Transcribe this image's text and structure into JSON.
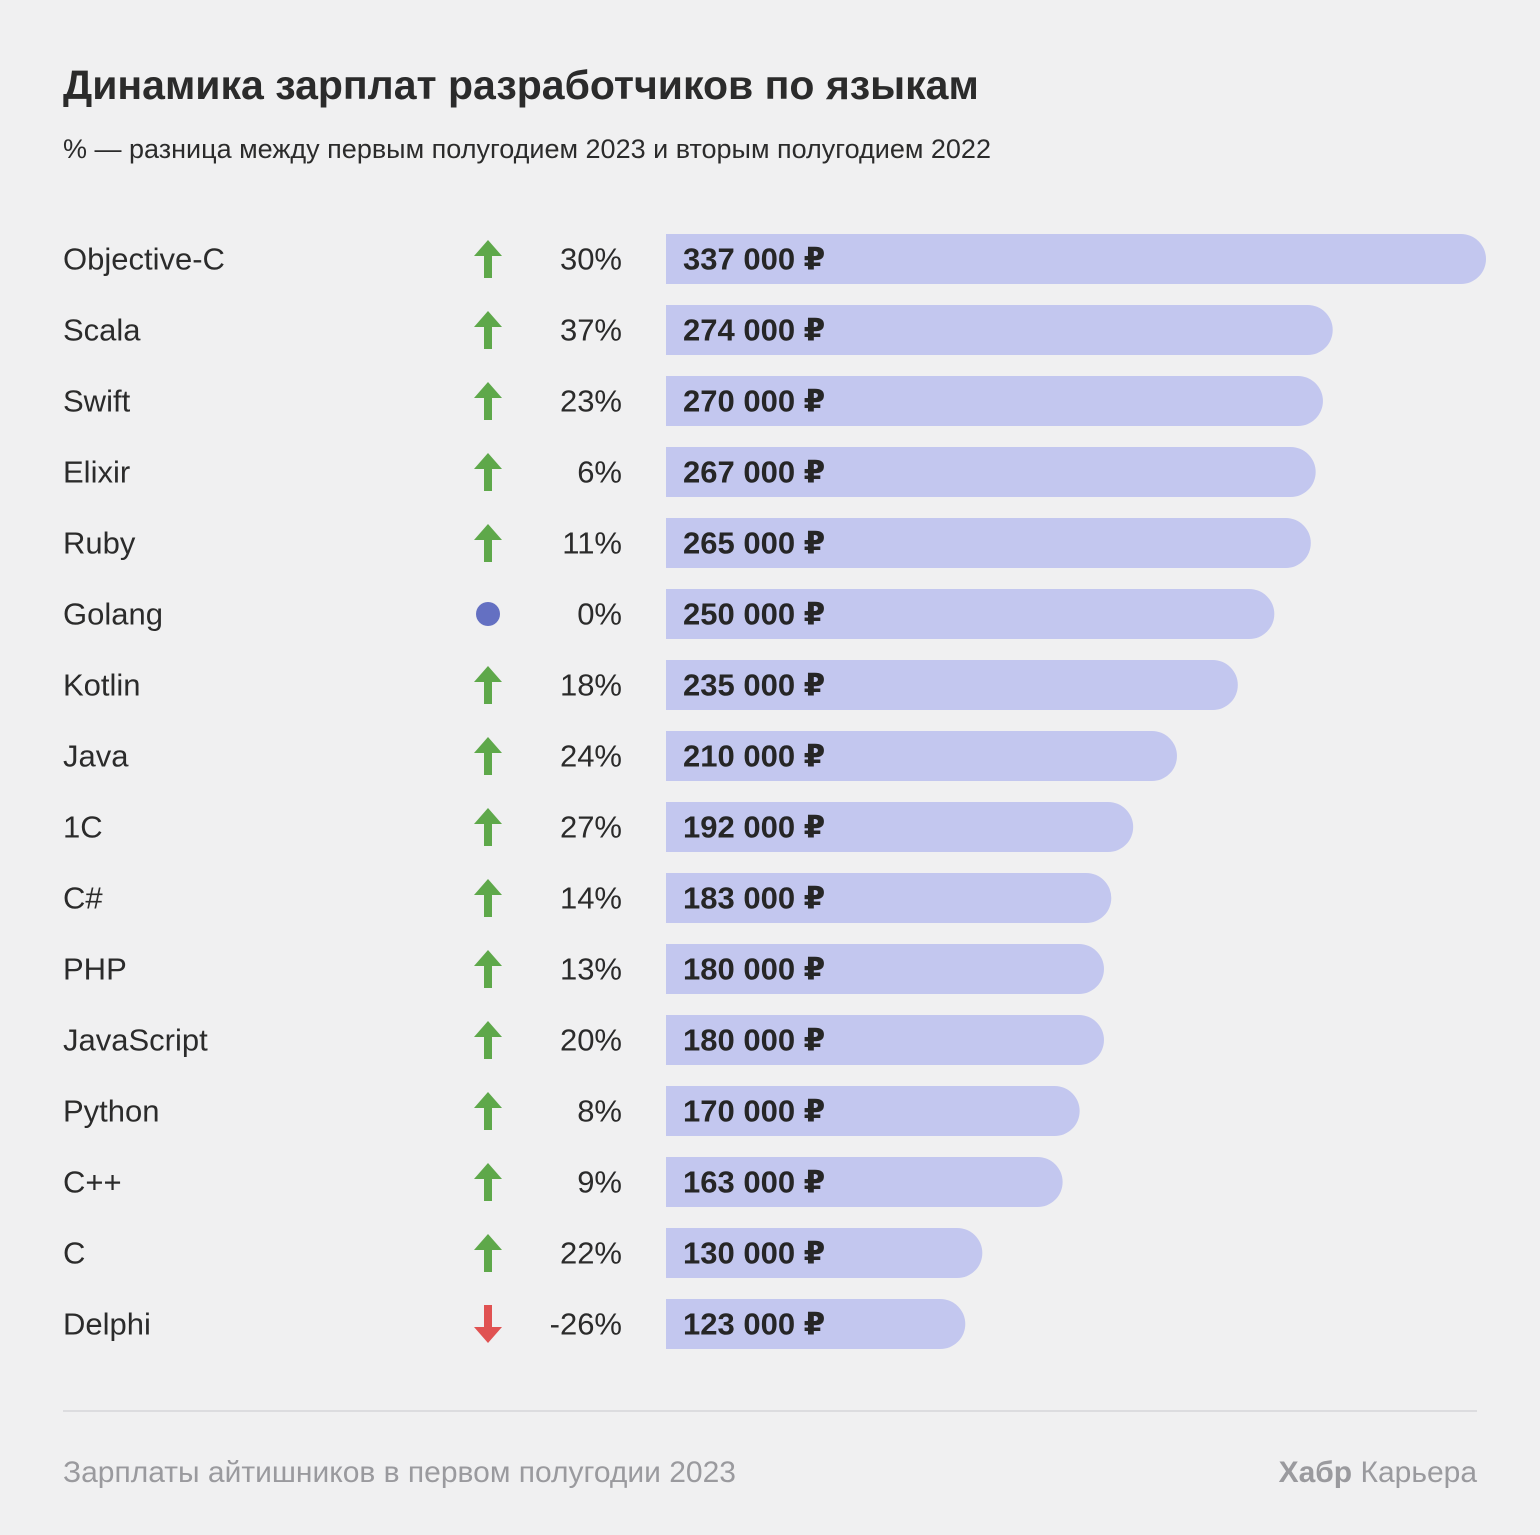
{
  "chart_data": {
    "type": "bar",
    "title": "Динамика зарплат разработчиков по языкам",
    "subtitle": "% — разница между первым полугодием 2023 и вторым полугодием 2022",
    "orientation": "horizontal",
    "value_unit": "₽",
    "categories": [
      "Objective-C",
      "Scala",
      "Swift",
      "Elixir",
      "Ruby",
      "Golang",
      "Kotlin",
      "Java",
      "1C",
      "C#",
      "PHP",
      "JavaScript",
      "Python",
      "C++",
      "C",
      "Delphi"
    ],
    "values": [
      337000,
      274000,
      270000,
      267000,
      265000,
      250000,
      235000,
      210000,
      192000,
      183000,
      180000,
      180000,
      170000,
      163000,
      130000,
      123000
    ],
    "value_labels": [
      "337 000 ₽",
      "274 000 ₽",
      "270 000 ₽",
      "267 000 ₽",
      "265 000 ₽",
      "250 000 ₽",
      "235 000 ₽",
      "210 000 ₽",
      "192 000 ₽",
      "183 000 ₽",
      "180 000 ₽",
      "180 000 ₽",
      "170 000 ₽",
      "163 000 ₽",
      "130 000 ₽",
      "123 000 ₽"
    ],
    "change_pct": [
      30,
      37,
      23,
      6,
      11,
      0,
      18,
      24,
      27,
      14,
      13,
      20,
      8,
      9,
      22,
      -26
    ],
    "change_labels": [
      "30%",
      "37%",
      "23%",
      "6%",
      "11%",
      "0%",
      "18%",
      "24%",
      "27%",
      "14%",
      "13%",
      "20%",
      "8%",
      "9%",
      "22%",
      "-26%"
    ],
    "trend": [
      "up",
      "up",
      "up",
      "up",
      "up",
      "flat",
      "up",
      "up",
      "up",
      "up",
      "up",
      "up",
      "up",
      "up",
      "up",
      "down"
    ],
    "xlim": [
      0,
      337000
    ],
    "grid": false,
    "legend": "none"
  },
  "colors": {
    "background": "#f0f0f1",
    "bar": "#c3c7ef",
    "up": "#5ea84a",
    "down": "#e05252",
    "flat": "#6470c2",
    "text": "#2b2b2b",
    "muted": "#9a9a9e"
  },
  "icons": {
    "up": "arrow-up-icon",
    "down": "arrow-down-icon",
    "flat": "dot-icon"
  },
  "footer": {
    "source": "Зарплаты айтишников в первом полугодии 2023",
    "brand_bold": "Хабр",
    "brand_light": "Карьера"
  }
}
